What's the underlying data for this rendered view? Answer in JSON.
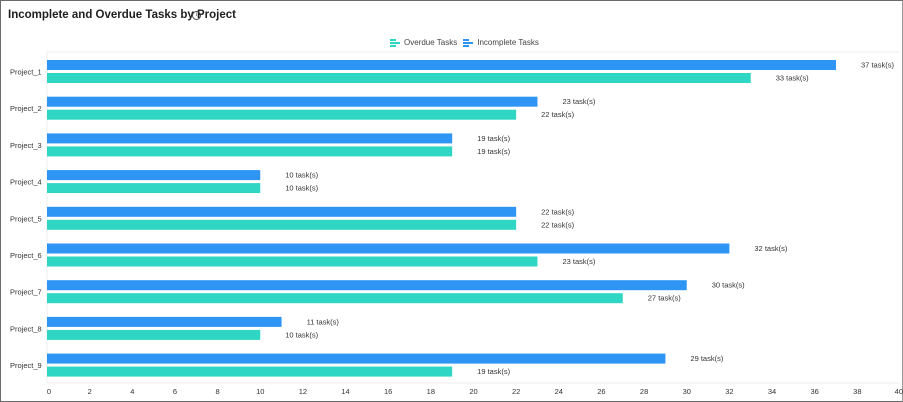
{
  "header": {
    "title": "Incomplete and Overdue Tasks by Project",
    "info_icon": "info-circle-icon",
    "info_glyph": "i"
  },
  "colors": {
    "incomplete": "#2f95f5",
    "overdue": "#2fd6c3",
    "grid": "#eeeeee"
  },
  "chart_data": {
    "type": "bar",
    "orientation": "horizontal",
    "title": "Incomplete and Overdue Tasks by Project",
    "xlabel": "",
    "ylabel": "",
    "xlim": [
      0,
      40
    ],
    "x_ticks": [
      0,
      2,
      4,
      6,
      8,
      10,
      12,
      14,
      16,
      18,
      20,
      22,
      24,
      26,
      28,
      30,
      32,
      34,
      36,
      38,
      40
    ],
    "grid": false,
    "legend_position": "top-center",
    "legend": [
      "Overdue Tasks",
      "Incomplete Tasks"
    ],
    "categories": [
      "Project_1",
      "Project_2",
      "Project_3",
      "Project_4",
      "Project_5",
      "Project_6",
      "Project_7",
      "Project_8",
      "Project_9"
    ],
    "series": [
      {
        "name": "Incomplete Tasks",
        "values": [
          37,
          23,
          19,
          10,
          22,
          32,
          30,
          11,
          29
        ],
        "labels": [
          "37 task(s)",
          "23 task(s)",
          "19 task(s)",
          "10 task(s)",
          "22 task(s)",
          "32 task(s)",
          "30 task(s)",
          "11 task(s)",
          "29 task(s)"
        ]
      },
      {
        "name": "Overdue Tasks",
        "values": [
          33,
          22,
          19,
          10,
          22,
          23,
          27,
          10,
          19
        ],
        "labels": [
          "33 task(s)",
          "22 task(s)",
          "19 task(s)",
          "10 task(s)",
          "22 task(s)",
          "23 task(s)",
          "27 task(s)",
          "10 task(s)",
          "19 task(s)"
        ]
      }
    ]
  }
}
